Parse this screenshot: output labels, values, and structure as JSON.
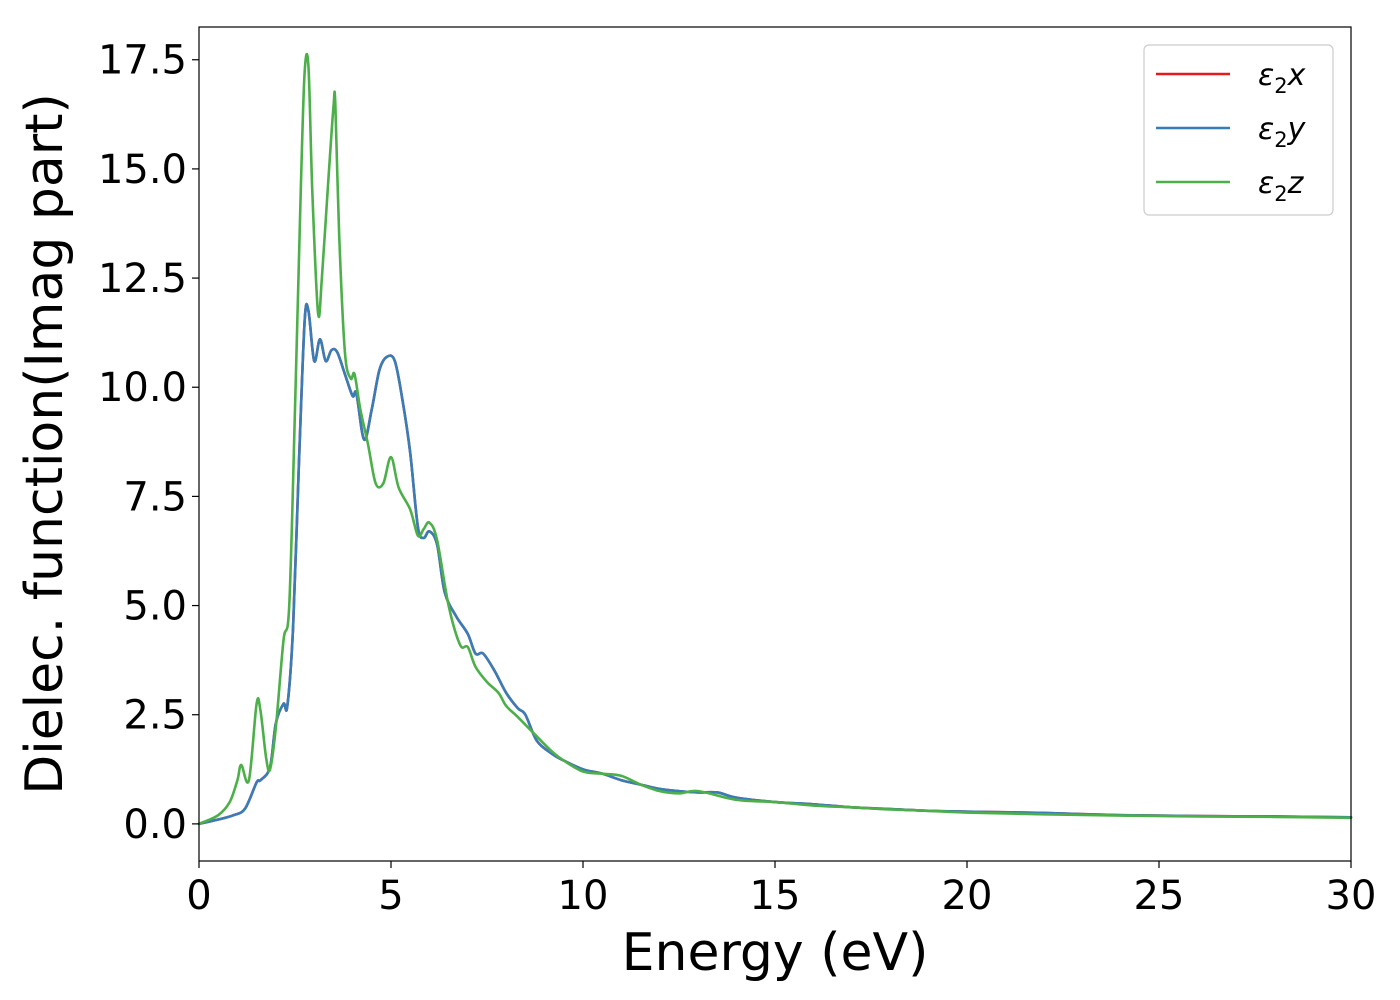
{
  "chart_data": {
    "type": "line",
    "title": "",
    "xlabel": "Energy (eV)",
    "ylabel": "Dielec. function(Imag part)",
    "xlim": [
      0,
      30
    ],
    "ylim": [
      -0.85,
      18.25
    ],
    "xticks": [
      0,
      5,
      10,
      15,
      20,
      25,
      30
    ],
    "xtick_labels": [
      "0",
      "5",
      "10",
      "15",
      "20",
      "25",
      "30"
    ],
    "yticks": [
      0.0,
      2.5,
      5.0,
      7.5,
      10.0,
      12.5,
      15.0,
      17.5
    ],
    "ytick_labels": [
      "0.0",
      "2.5",
      "5.0",
      "7.5",
      "10.0",
      "12.5",
      "15.0",
      "17.5"
    ],
    "grid": false,
    "legend_position": "top-right",
    "series": [
      {
        "name": "ε₂x",
        "legend_base": "ε",
        "legend_sub": "2",
        "legend_suffix": "x",
        "color": "#e41a1c",
        "x": [
          0,
          0.5,
          0.9,
          1.2,
          1.5,
          1.6,
          1.85,
          2.0,
          2.2,
          2.3,
          2.45,
          2.6,
          2.75,
          2.85,
          3.0,
          3.15,
          3.3,
          3.45,
          3.6,
          3.8,
          4.0,
          4.1,
          4.3,
          4.5,
          4.7,
          4.9,
          5.1,
          5.3,
          5.5,
          5.7,
          5.85,
          6.0,
          6.2,
          6.4,
          6.7,
          7.0,
          7.2,
          7.4,
          7.7,
          8.0,
          8.3,
          8.5,
          8.8,
          9.2,
          9.5,
          10.0,
          10.5,
          11.0,
          11.5,
          12.0,
          12.5,
          13.0,
          13.5,
          14.0,
          15.0,
          16.0,
          17.0,
          18.0,
          19.0,
          20.0,
          22.0,
          24.0,
          26.0,
          28.0,
          30.0
        ],
        "y": [
          0.0,
          0.1,
          0.2,
          0.35,
          0.95,
          1.0,
          1.3,
          2.3,
          2.75,
          2.7,
          4.5,
          8.2,
          11.5,
          11.75,
          10.6,
          11.1,
          10.6,
          10.85,
          10.8,
          10.3,
          9.8,
          9.85,
          8.8,
          9.5,
          10.4,
          10.7,
          10.6,
          9.7,
          8.5,
          6.8,
          6.55,
          6.7,
          6.4,
          5.3,
          4.75,
          4.35,
          3.9,
          3.9,
          3.5,
          3.0,
          2.65,
          2.5,
          1.9,
          1.6,
          1.45,
          1.25,
          1.15,
          1.0,
          0.9,
          0.8,
          0.75,
          0.72,
          0.72,
          0.6,
          0.5,
          0.45,
          0.38,
          0.34,
          0.3,
          0.28,
          0.25,
          0.2,
          0.18,
          0.17,
          0.15
        ]
      },
      {
        "name": "ε₂y",
        "legend_base": "ε",
        "legend_sub": "2",
        "legend_suffix": "y",
        "color": "#377eb8",
        "x": [
          0,
          0.5,
          0.9,
          1.2,
          1.5,
          1.6,
          1.85,
          2.0,
          2.2,
          2.3,
          2.45,
          2.6,
          2.75,
          2.85,
          3.0,
          3.15,
          3.3,
          3.45,
          3.6,
          3.8,
          4.0,
          4.1,
          4.3,
          4.5,
          4.7,
          4.9,
          5.1,
          5.3,
          5.5,
          5.7,
          5.85,
          6.0,
          6.2,
          6.4,
          6.7,
          7.0,
          7.2,
          7.4,
          7.7,
          8.0,
          8.3,
          8.5,
          8.8,
          9.2,
          9.5,
          10.0,
          10.5,
          11.0,
          11.5,
          12.0,
          12.5,
          13.0,
          13.5,
          14.0,
          15.0,
          16.0,
          17.0,
          18.0,
          19.0,
          20.0,
          22.0,
          24.0,
          26.0,
          28.0,
          30.0
        ],
        "y": [
          0.0,
          0.1,
          0.2,
          0.35,
          0.95,
          1.0,
          1.3,
          2.3,
          2.75,
          2.7,
          4.5,
          8.2,
          11.5,
          11.75,
          10.6,
          11.1,
          10.6,
          10.85,
          10.8,
          10.3,
          9.8,
          9.85,
          8.8,
          9.5,
          10.4,
          10.7,
          10.6,
          9.7,
          8.5,
          6.8,
          6.55,
          6.7,
          6.4,
          5.3,
          4.75,
          4.35,
          3.9,
          3.9,
          3.5,
          3.0,
          2.65,
          2.5,
          1.9,
          1.6,
          1.45,
          1.25,
          1.15,
          1.0,
          0.9,
          0.8,
          0.75,
          0.72,
          0.72,
          0.6,
          0.5,
          0.45,
          0.38,
          0.34,
          0.3,
          0.28,
          0.25,
          0.2,
          0.18,
          0.17,
          0.15
        ]
      },
      {
        "name": "ε₂z",
        "legend_base": "ε",
        "legend_sub": "2",
        "legend_suffix": "z",
        "color": "#4daf4a",
        "x": [
          0,
          0.5,
          0.8,
          1.0,
          1.1,
          1.3,
          1.5,
          1.6,
          1.75,
          1.85,
          2.0,
          2.2,
          2.35,
          2.5,
          2.65,
          2.75,
          2.85,
          2.95,
          3.1,
          3.2,
          3.35,
          3.5,
          3.55,
          3.65,
          3.8,
          3.95,
          4.05,
          4.2,
          4.4,
          4.6,
          4.8,
          5.0,
          5.2,
          5.5,
          5.7,
          5.85,
          6.0,
          6.2,
          6.5,
          6.8,
          7.0,
          7.2,
          7.5,
          7.8,
          8.0,
          8.3,
          8.8,
          9.2,
          9.5,
          10.0,
          10.5,
          11.0,
          11.5,
          12.0,
          12.5,
          13.0,
          14.0,
          15.0,
          16.0,
          17.0,
          18.0,
          19.0,
          20.0,
          22.0,
          24.0,
          26.0,
          28.0,
          30.0
        ],
        "y": [
          0.0,
          0.2,
          0.5,
          1.0,
          1.35,
          1.0,
          2.75,
          2.6,
          1.5,
          1.25,
          2.2,
          4.2,
          5.0,
          9.5,
          14.5,
          17.2,
          17.35,
          14.5,
          11.7,
          12.5,
          14.5,
          16.4,
          16.5,
          13.5,
          10.8,
          10.2,
          10.3,
          9.5,
          8.7,
          7.8,
          7.8,
          8.4,
          7.7,
          7.2,
          6.6,
          6.75,
          6.9,
          6.5,
          5.0,
          4.1,
          4.05,
          3.6,
          3.25,
          3.0,
          2.7,
          2.45,
          2.0,
          1.65,
          1.45,
          1.2,
          1.15,
          1.1,
          0.9,
          0.75,
          0.7,
          0.75,
          0.55,
          0.5,
          0.42,
          0.38,
          0.33,
          0.3,
          0.26,
          0.22,
          0.19,
          0.17,
          0.16,
          0.14
        ]
      }
    ]
  }
}
